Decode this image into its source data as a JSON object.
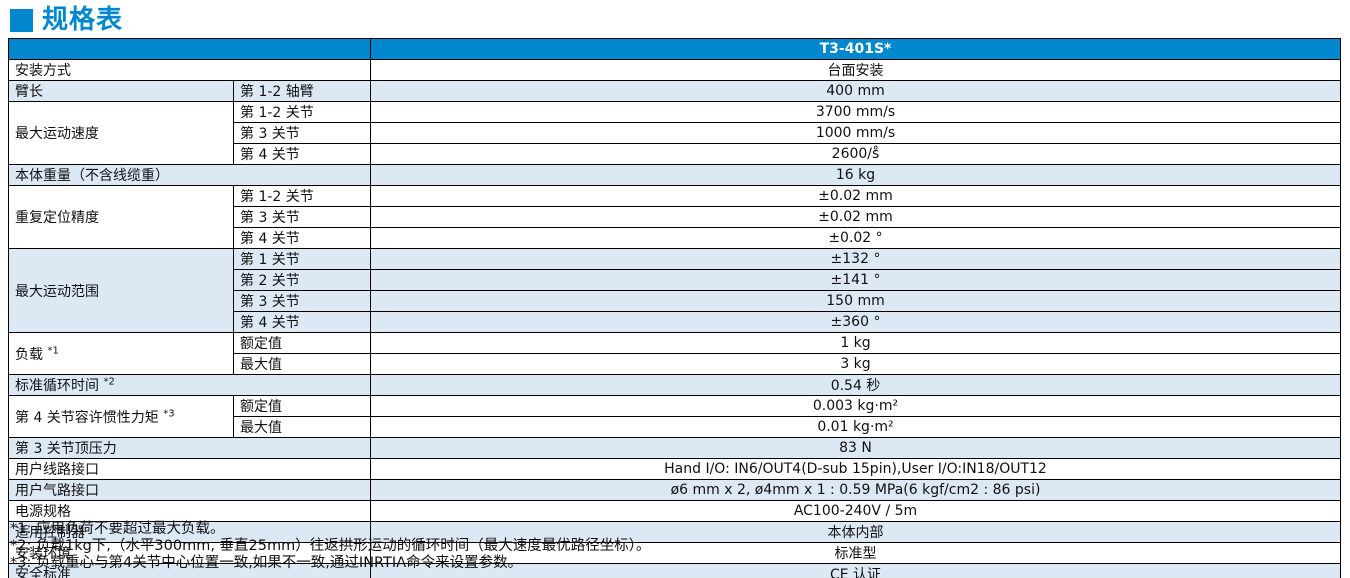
{
  "title": "规格表",
  "header": {
    "model": "T3-401S*"
  },
  "colors": {
    "accent_blue": "#0087ce",
    "row_light_blue": "#dde8f5",
    "header_text": "#ffffff",
    "border": "#000000"
  },
  "table": {
    "groups": [
      {
        "label": "安装方式",
        "span": true,
        "shade": "white",
        "rows": [
          {
            "value": "台面安装"
          }
        ]
      },
      {
        "label": "臂长",
        "span": false,
        "shade": "blue",
        "rows": [
          {
            "sub": "第 1-2 轴臂",
            "value": "400 mm"
          }
        ]
      },
      {
        "label": "最大运动速度",
        "span": false,
        "shade": "white",
        "rows": [
          {
            "sub": "第 1-2 关节",
            "value": "3700 mm/s"
          },
          {
            "sub": "第 3 关节",
            "value": "1000 mm/s"
          },
          {
            "sub": "第 4 关节",
            "value": "2600/s̊"
          }
        ]
      },
      {
        "label": "本体重量（不含线缆重）",
        "span": true,
        "shade": "blue",
        "rows": [
          {
            "value": "16 kg"
          }
        ]
      },
      {
        "label": "重复定位精度",
        "span": false,
        "shade": "white",
        "rows": [
          {
            "sub": "第 1-2 关节",
            "value": "±0.02 mm"
          },
          {
            "sub": "第 3 关节",
            "value": "±0.02 mm"
          },
          {
            "sub": "第 4 关节",
            "value": "±0.02 °"
          }
        ]
      },
      {
        "label": "最大运动范围",
        "span": false,
        "shade": "blue",
        "rows": [
          {
            "sub": "第 1 关节",
            "value": "±132 °"
          },
          {
            "sub": "第 2 关节",
            "value": "±141 °"
          },
          {
            "sub": "第 3 关节",
            "value": "150 mm"
          },
          {
            "sub": "第 4 关节",
            "value": "±360 °"
          }
        ]
      },
      {
        "label": "负载",
        "marker": "*1",
        "span": false,
        "shade": "white",
        "rows": [
          {
            "sub": "额定值",
            "value": "1 kg"
          },
          {
            "sub": "最大值",
            "value": "3 kg"
          }
        ]
      },
      {
        "label": "标准循环时间",
        "marker": "*2",
        "span": true,
        "shade": "blue",
        "rows": [
          {
            "value": "0.54 秒"
          }
        ]
      },
      {
        "label": "第 4 关节容许惯性力矩",
        "marker": "*3",
        "span": false,
        "shade": "white",
        "rows": [
          {
            "sub": "额定值",
            "value": "0.003 kg·m²"
          },
          {
            "sub": "最大值",
            "value": "0.01 kg·m²"
          }
        ]
      },
      {
        "label": "第 3 关节顶压力",
        "span": true,
        "shade": "blue",
        "rows": [
          {
            "value": "83 N"
          }
        ]
      },
      {
        "label": "用户线路接口",
        "span": true,
        "shade": "white",
        "rows": [
          {
            "value": "Hand I/O: IN6/OUT4(D-sub 15pin),User I/O:IN18/OUT12"
          }
        ]
      },
      {
        "label": "用户气路接口",
        "span": true,
        "shade": "blue",
        "rows": [
          {
            "value": "ø6 mm x 2, ø4mm x 1 : 0.59 MPa(6 kgf/cm2 : 86 psi)"
          }
        ]
      },
      {
        "label": "电源规格",
        "span": true,
        "shade": "white",
        "rows": [
          {
            "value": "AC100-240V / 5m"
          }
        ]
      },
      {
        "label": "适用控制器",
        "span": true,
        "shade": "blue",
        "rows": [
          {
            "value": "本体内部"
          }
        ]
      },
      {
        "label": "安装环境",
        "span": true,
        "shade": "white",
        "rows": [
          {
            "value": "标准型"
          }
        ]
      },
      {
        "label": "安全标准",
        "span": true,
        "shade": "blue",
        "rows": [
          {
            "value": "CE 认证"
          }
        ]
      }
    ]
  },
  "footnotes": [
    "*1: 应用负荷不要超过最大负载。",
    "*2: 负载1kg下,（水平300mm, 垂直25mm）往返拱形运动的循环时间（最大速度最优路径坐标）。",
    "*3: 负载重心与第4关节中心位置一致,如果不一致,通过INRTIA命令来设置参数。"
  ]
}
